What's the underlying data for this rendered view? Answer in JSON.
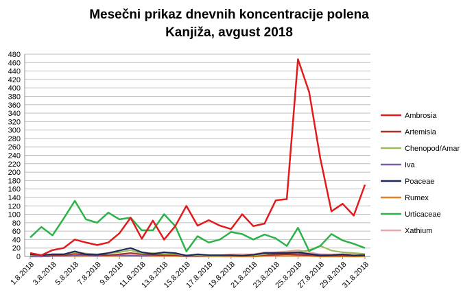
{
  "chart_data": {
    "type": "line",
    "title": "Mesečni prikaz dnevnih koncentracije polena",
    "subtitle": "Kanjiža, avgust 2018",
    "xlabel": "",
    "ylabel": "",
    "ylim": [
      0,
      480
    ],
    "yticks": [
      0,
      20,
      40,
      60,
      80,
      100,
      120,
      140,
      160,
      180,
      200,
      220,
      240,
      260,
      280,
      300,
      320,
      340,
      360,
      380,
      400,
      420,
      440,
      460,
      480
    ],
    "grid": "horizontal",
    "legend_position": "right",
    "categories": [
      "1.8.2018",
      "2.8.2018",
      "3.8.2018",
      "4.8.2018",
      "5.8.2018",
      "6.8.2018",
      "7.8.2018",
      "8.8.2018",
      "9.8.2018",
      "10.8.2018",
      "11.8.2018",
      "12.8.2018",
      "13.8.2018",
      "14.8.2018",
      "15.8.2018",
      "16.8.2018",
      "17.8.2018",
      "18.8.2018",
      "19.8.2018",
      "20.8.2018",
      "21.8.2018",
      "22.8.2018",
      "23.8.2018",
      "24.8.2018",
      "25.8.2018",
      "26.8.2018",
      "27.8.2018",
      "28.8.2018",
      "29.8.2018",
      "30.8.2018",
      "31.8.2018"
    ],
    "shown_tick_labels": [
      "1.8.2018",
      "3.8.2018",
      "5.8.2018",
      "7.8.2018",
      "9.8.2018",
      "11.8.2018",
      "13.8.2018",
      "15.8.2018",
      "17.8.2018",
      "19.8.2018",
      "21.8.2018",
      "23.8.2018",
      "25.8.2018",
      "27.8.2018",
      "29.8.2018",
      "31.8.2018"
    ],
    "series": [
      {
        "name": "Ambrosia",
        "color": "#e31a1c",
        "values": [
          8,
          3,
          15,
          20,
          40,
          33,
          27,
          33,
          55,
          92,
          42,
          85,
          40,
          72,
          120,
          73,
          86,
          73,
          65,
          100,
          72,
          78,
          133,
          136,
          468,
          390,
          233,
          107,
          125,
          97,
          170
        ]
      },
      {
        "name": "Artemisia",
        "color": "#a93226",
        "values": [
          3,
          2,
          3,
          3,
          6,
          4,
          4,
          3,
          5,
          8,
          5,
          4,
          3,
          3,
          2,
          2,
          1,
          1,
          2,
          2,
          2,
          3,
          4,
          5,
          4,
          3,
          2,
          2,
          2,
          2,
          4
        ]
      },
      {
        "name": "Chenopod/Amar",
        "color": "#9bbb59",
        "values": [
          3,
          2,
          5,
          5,
          10,
          7,
          5,
          8,
          10,
          15,
          7,
          8,
          6,
          6,
          2,
          3,
          1,
          1,
          2,
          2,
          3,
          5,
          10,
          10,
          10,
          15,
          25,
          14,
          10,
          8,
          6
        ]
      },
      {
        "name": "Iva",
        "color": "#7c5ea8",
        "values": [
          0,
          0,
          1,
          1,
          2,
          2,
          1,
          2,
          2,
          2,
          1,
          2,
          2,
          2,
          1,
          1,
          1,
          1,
          2,
          2,
          2,
          3,
          6,
          8,
          8,
          6,
          4,
          3,
          2,
          2,
          2
        ]
      },
      {
        "name": "Poaceae",
        "color": "#1f2a5c",
        "values": [
          5,
          3,
          5,
          5,
          12,
          5,
          4,
          8,
          14,
          20,
          10,
          6,
          10,
          8,
          2,
          5,
          3,
          3,
          3,
          2,
          4,
          8,
          8,
          8,
          10,
          6,
          2,
          3,
          5,
          2,
          3
        ]
      },
      {
        "name": "Rumex",
        "color": "#e67e22",
        "values": [
          1,
          0,
          1,
          1,
          1,
          1,
          1,
          1,
          1,
          2,
          1,
          1,
          1,
          1,
          0,
          0,
          0,
          0,
          0,
          0,
          0,
          1,
          1,
          1,
          1,
          1,
          0,
          0,
          0,
          0,
          0
        ]
      },
      {
        "name": "Urticaceae",
        "color": "#2bb34a",
        "values": [
          45,
          70,
          50,
          90,
          132,
          88,
          80,
          104,
          88,
          92,
          62,
          62,
          100,
          72,
          12,
          48,
          33,
          40,
          58,
          53,
          40,
          52,
          43,
          25,
          68,
          13,
          25,
          53,
          38,
          30,
          20
        ]
      },
      {
        "name": "Xathium",
        "color": "#e8a8a8",
        "values": [
          0,
          0,
          1,
          1,
          1,
          1,
          1,
          2,
          3,
          3,
          2,
          2,
          3,
          3,
          3,
          3,
          3,
          3,
          5,
          5,
          5,
          10,
          10,
          12,
          15,
          10,
          5,
          5,
          5,
          5,
          5
        ]
      }
    ]
  }
}
